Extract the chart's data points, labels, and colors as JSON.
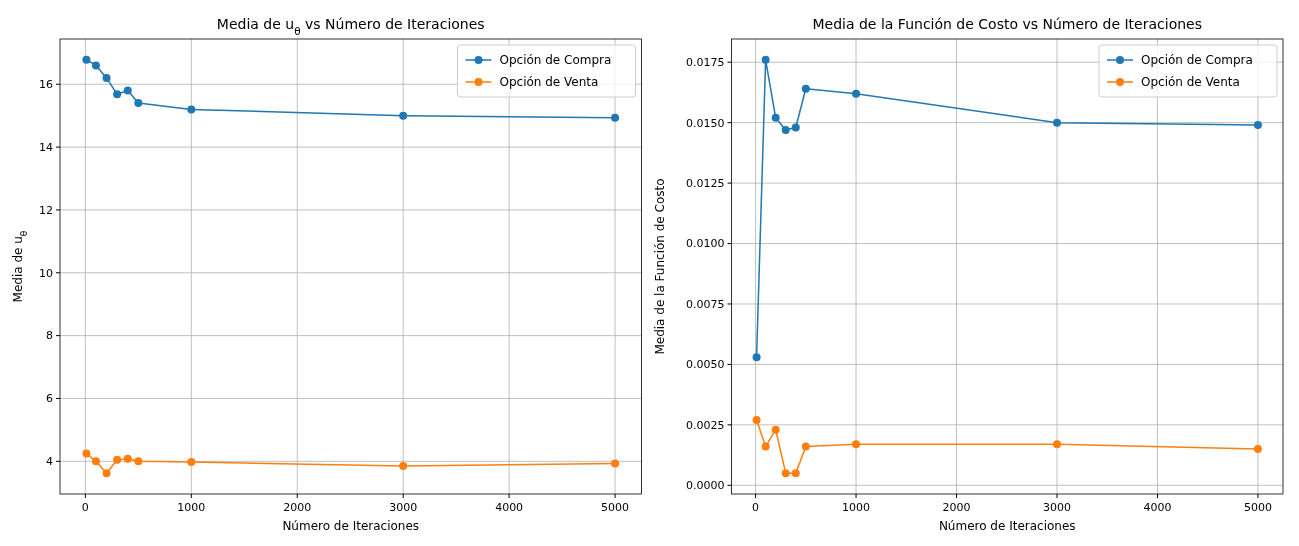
{
  "chart_data": [
    {
      "type": "line",
      "title": "Media de u$_{θ}$ vs Número de Iteraciones",
      "xlabel": "Número de Iteraciones",
      "ylabel": "Media de u$_{θ}$",
      "x": [
        10,
        100,
        200,
        300,
        400,
        500,
        1000,
        3000,
        5000
      ],
      "xlim": [
        -239.5,
        5249.5
      ],
      "xticks": [
        0,
        1000,
        2000,
        3000,
        4000,
        5000
      ],
      "ylim": [
        2.96,
        17.44
      ],
      "yticks": [
        4,
        6,
        8,
        10,
        12,
        14,
        16
      ],
      "grid": true,
      "legend": "top right",
      "marker": "circle",
      "line_style": "solid",
      "series": [
        {
          "name": "Opción de Compra",
          "color": "#1f77b4",
          "values": [
            16.78,
            16.6,
            16.2,
            15.68,
            15.8,
            15.4,
            15.2,
            15.0,
            14.93
          ]
        },
        {
          "name": "Opción de Venta",
          "color": "#ff7f0e",
          "values": [
            4.25,
            4.0,
            3.62,
            4.05,
            4.08,
            4.0,
            3.98,
            3.85,
            3.93
          ]
        }
      ]
    },
    {
      "type": "line",
      "title": "Media de la Función de Costo vs Número de Iteraciones",
      "xlabel": "Número de Iteraciones",
      "ylabel": "Media de la Función de Costo",
      "x": [
        10,
        100,
        200,
        300,
        400,
        500,
        1000,
        3000,
        5000
      ],
      "xlim": [
        -239.5,
        5249.5
      ],
      "xticks": [
        0,
        1000,
        2000,
        3000,
        4000,
        5000
      ],
      "ylim": [
        -0.00036,
        0.01846
      ],
      "yticks": [
        {
          "value": 0,
          "label": "0.0000"
        },
        {
          "value": 0.0025,
          "label": "0.0025"
        },
        {
          "value": 0.005,
          "label": "0.0050"
        },
        {
          "value": 0.0075,
          "label": "0.0075"
        },
        {
          "value": 0.01,
          "label": "0.0100"
        },
        {
          "value": 0.0125,
          "label": "0.0125"
        },
        {
          "value": 0.015,
          "label": "0.0150"
        },
        {
          "value": 0.0175,
          "label": "0.0175"
        }
      ],
      "grid": true,
      "legend": "top right",
      "marker": "circle",
      "line_style": "solid",
      "series": [
        {
          "name": "Opción de Compra",
          "color": "#1f77b4",
          "values": [
            0.0053,
            0.0176,
            0.0152,
            0.0147,
            0.0148,
            0.0164,
            0.0162,
            0.015,
            0.0149
          ]
        },
        {
          "name": "Opción de Venta",
          "color": "#ff7f0e",
          "values": [
            0.0027,
            0.0016,
            0.0023,
            0.0005,
            0.0005,
            0.0016,
            0.0017,
            0.0017,
            0.0015
          ]
        }
      ]
    }
  ]
}
